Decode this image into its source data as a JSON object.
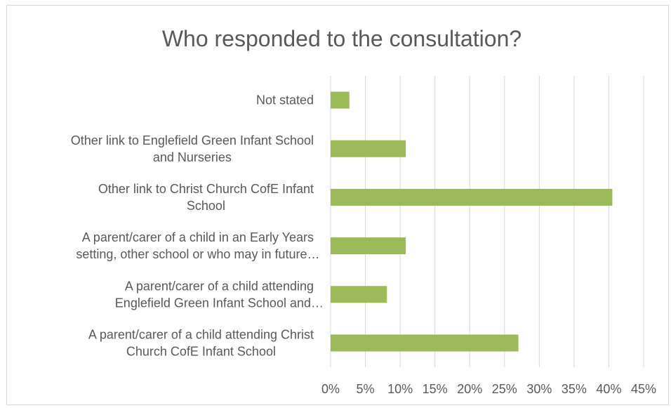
{
  "chart_data": {
    "type": "bar",
    "orientation": "horizontal",
    "title": "Who responded to the consultation?",
    "categories": [
      [
        "Not stated"
      ],
      [
        "Other link to Englefield Green Infant School",
        "and Nurseries"
      ],
      [
        "Other link to Christ Church CofE Infant",
        "School"
      ],
      [
        "A parent/carer of a child in an Early Years",
        "setting, other school or who may in future…"
      ],
      [
        "A parent/carer of a child attending",
        "Englefield Green Infant School and…"
      ],
      [
        "A parent/carer of a child attending Christ",
        "Church CofE Infant School"
      ]
    ],
    "values": [
      2.7,
      10.8,
      40.5,
      10.8,
      8.1,
      27.0
    ],
    "xlim": [
      0,
      45
    ],
    "xticks": [
      "0%",
      "5%",
      "10%",
      "15%",
      "20%",
      "25%",
      "30%",
      "35%",
      "40%",
      "45%"
    ],
    "grid": true,
    "color": "#9bbb59"
  }
}
